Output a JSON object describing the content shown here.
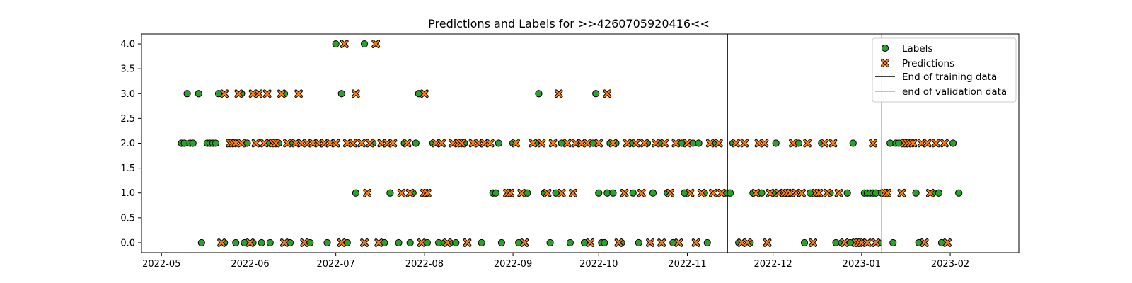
{
  "chart_data": {
    "type": "scatter",
    "title": "Predictions and Labels for >>4260705920416<<",
    "xlabel": "",
    "ylabel": "",
    "x_range": [
      "2022-04-24",
      "2023-02-25"
    ],
    "ylim": [
      -0.2,
      4.2
    ],
    "grid": false,
    "legend_placement": "top-right",
    "x_ticks": [
      "2022-05-01",
      "2022-06-01",
      "2022-07-01",
      "2022-08-01",
      "2022-09-01",
      "2022-10-01",
      "2022-11-01",
      "2022-12-01",
      "2023-01-01",
      "2023-02-01"
    ],
    "x_tick_labels": [
      "2022-05",
      "2022-06",
      "2022-07",
      "2022-08",
      "2022-09",
      "2022-10",
      "2022-11",
      "2022-12",
      "2023-01",
      "2023-02"
    ],
    "y_ticks": [
      0.0,
      0.5,
      1.0,
      1.5,
      2.0,
      2.5,
      3.0,
      3.5,
      4.0
    ],
    "y_tick_labels": [
      "0.0",
      "0.5",
      "1.0",
      "1.5",
      "2.0",
      "2.5",
      "3.0",
      "3.5",
      "4.0"
    ],
    "series": [
      {
        "name": "Labels",
        "marker": "circle",
        "color": "#2ca02c",
        "points": [
          [
            "2022-05-08",
            2
          ],
          [
            "2022-05-09",
            2
          ],
          [
            "2022-05-10",
            3
          ],
          [
            "2022-05-11",
            2
          ],
          [
            "2022-05-12",
            2
          ],
          [
            "2022-05-14",
            3
          ],
          [
            "2022-05-15",
            0
          ],
          [
            "2022-05-17",
            2
          ],
          [
            "2022-05-18",
            2
          ],
          [
            "2022-05-19",
            2
          ],
          [
            "2022-05-20",
            2
          ],
          [
            "2022-05-21",
            3
          ],
          [
            "2022-05-23",
            0
          ],
          [
            "2022-05-27",
            0
          ],
          [
            "2022-05-29",
            3
          ],
          [
            "2022-05-30",
            0
          ],
          [
            "2022-05-31",
            2
          ],
          [
            "2022-06-02",
            0
          ],
          [
            "2022-06-03",
            3
          ],
          [
            "2022-06-05",
            0
          ],
          [
            "2022-06-07",
            2
          ],
          [
            "2022-06-08",
            0
          ],
          [
            "2022-06-11",
            2
          ],
          [
            "2022-06-13",
            3
          ],
          [
            "2022-06-15",
            0
          ],
          [
            "2022-06-16",
            2
          ],
          [
            "2022-06-22",
            0
          ],
          [
            "2022-06-28",
            0
          ],
          [
            "2022-07-01",
            4
          ],
          [
            "2022-07-03",
            3
          ],
          [
            "2022-07-05",
            0
          ],
          [
            "2022-07-08",
            1
          ],
          [
            "2022-07-11",
            4
          ],
          [
            "2022-07-14",
            2
          ],
          [
            "2022-07-18",
            0
          ],
          [
            "2022-07-20",
            1
          ],
          [
            "2022-07-23",
            0
          ],
          [
            "2022-07-25",
            2
          ],
          [
            "2022-07-27",
            0
          ],
          [
            "2022-07-28",
            1
          ],
          [
            "2022-07-29",
            2
          ],
          [
            "2022-07-30",
            3
          ],
          [
            "2022-08-02",
            0
          ],
          [
            "2022-08-04",
            2
          ],
          [
            "2022-08-06",
            0
          ],
          [
            "2022-08-08",
            0
          ],
          [
            "2022-08-10",
            0
          ],
          [
            "2022-08-12",
            0
          ],
          [
            "2022-08-15",
            2
          ],
          [
            "2022-08-21",
            0
          ],
          [
            "2022-08-25",
            1
          ],
          [
            "2022-08-26",
            1
          ],
          [
            "2022-08-27",
            2
          ],
          [
            "2022-08-28",
            0
          ],
          [
            "2022-09-01",
            2
          ],
          [
            "2022-09-03",
            0
          ],
          [
            "2022-09-06",
            1
          ],
          [
            "2022-09-09",
            2
          ],
          [
            "2022-09-10",
            3
          ],
          [
            "2022-09-12",
            1
          ],
          [
            "2022-09-14",
            0
          ],
          [
            "2022-09-16",
            1
          ],
          [
            "2022-09-18",
            2
          ],
          [
            "2022-09-21",
            0
          ],
          [
            "2022-09-24",
            2
          ],
          [
            "2022-09-26",
            0
          ],
          [
            "2022-09-29",
            2
          ],
          [
            "2022-09-30",
            3
          ],
          [
            "2022-10-01",
            1
          ],
          [
            "2022-10-02",
            0
          ],
          [
            "2022-10-03",
            0
          ],
          [
            "2022-10-04",
            1
          ],
          [
            "2022-10-05",
            2
          ],
          [
            "2022-10-06",
            1
          ],
          [
            "2022-10-07",
            2
          ],
          [
            "2022-10-09",
            0
          ],
          [
            "2022-10-12",
            2
          ],
          [
            "2022-10-13",
            1
          ],
          [
            "2022-10-15",
            0
          ],
          [
            "2022-10-18",
            2
          ],
          [
            "2022-10-20",
            1
          ],
          [
            "2022-10-22",
            2
          ],
          [
            "2022-10-25",
            1
          ],
          [
            "2022-10-27",
            0
          ],
          [
            "2022-10-30",
            2
          ],
          [
            "2022-10-31",
            1
          ],
          [
            "2022-11-03",
            2
          ],
          [
            "2022-11-05",
            2
          ],
          [
            "2022-11-07",
            1
          ],
          [
            "2022-11-08",
            0
          ],
          [
            "2022-11-11",
            2
          ],
          [
            "2022-11-14",
            1
          ],
          [
            "2022-11-15",
            1
          ],
          [
            "2022-11-16",
            1
          ],
          [
            "2022-11-17",
            2
          ],
          [
            "2022-11-19",
            0
          ],
          [
            "2022-11-23",
            0
          ],
          [
            "2022-11-24",
            1
          ],
          [
            "2022-11-27",
            1
          ],
          [
            "2022-12-01",
            1
          ],
          [
            "2022-12-02",
            2
          ],
          [
            "2022-12-04",
            1
          ],
          [
            "2022-12-10",
            2
          ],
          [
            "2022-12-12",
            0
          ],
          [
            "2022-12-14",
            1
          ],
          [
            "2022-12-18",
            2
          ],
          [
            "2022-12-21",
            1
          ],
          [
            "2022-12-23",
            0
          ],
          [
            "2022-12-25",
            0
          ],
          [
            "2022-12-27",
            1
          ],
          [
            "2022-12-28",
            0
          ],
          [
            "2022-12-29",
            2
          ],
          [
            "2023-01-02",
            1
          ],
          [
            "2023-01-03",
            1
          ],
          [
            "2023-01-04",
            1
          ],
          [
            "2023-01-05",
            1
          ],
          [
            "2023-01-06",
            1
          ],
          [
            "2023-01-07",
            0
          ],
          [
            "2023-01-08",
            1
          ],
          [
            "2023-01-11",
            2
          ],
          [
            "2023-01-12",
            0
          ],
          [
            "2023-01-13",
            2
          ],
          [
            "2023-01-14",
            2
          ],
          [
            "2023-01-20",
            1
          ],
          [
            "2023-01-21",
            0
          ],
          [
            "2023-01-26",
            1
          ],
          [
            "2023-01-28",
            1
          ],
          [
            "2023-01-29",
            0
          ],
          [
            "2023-02-02",
            2
          ],
          [
            "2023-02-04",
            1
          ]
        ]
      },
      {
        "name": "Predictions",
        "marker": "x",
        "color": "#ff7f0e",
        "points": [
          [
            "2022-05-22",
            0
          ],
          [
            "2022-05-23",
            3
          ],
          [
            "2022-05-25",
            2
          ],
          [
            "2022-05-26",
            2
          ],
          [
            "2022-05-27",
            2
          ],
          [
            "2022-05-28",
            3
          ],
          [
            "2022-05-29",
            2
          ],
          [
            "2022-06-01",
            0
          ],
          [
            "2022-06-02",
            3
          ],
          [
            "2022-06-03",
            2
          ],
          [
            "2022-06-04",
            3
          ],
          [
            "2022-06-06",
            2
          ],
          [
            "2022-06-07",
            3
          ],
          [
            "2022-06-09",
            2
          ],
          [
            "2022-06-10",
            2
          ],
          [
            "2022-06-12",
            3
          ],
          [
            "2022-06-13",
            0
          ],
          [
            "2022-06-14",
            2
          ],
          [
            "2022-06-17",
            2
          ],
          [
            "2022-06-18",
            3
          ],
          [
            "2022-06-19",
            2
          ],
          [
            "2022-06-20",
            0
          ],
          [
            "2022-06-21",
            2
          ],
          [
            "2022-06-23",
            2
          ],
          [
            "2022-06-25",
            2
          ],
          [
            "2022-06-27",
            2
          ],
          [
            "2022-06-29",
            2
          ],
          [
            "2022-07-01",
            2
          ],
          [
            "2022-07-03",
            0
          ],
          [
            "2022-07-04",
            4
          ],
          [
            "2022-07-05",
            2
          ],
          [
            "2022-07-07",
            2
          ],
          [
            "2022-07-08",
            3
          ],
          [
            "2022-07-10",
            2
          ],
          [
            "2022-07-11",
            0
          ],
          [
            "2022-07-12",
            1
          ],
          [
            "2022-07-13",
            2
          ],
          [
            "2022-07-15",
            4
          ],
          [
            "2022-07-16",
            0
          ],
          [
            "2022-07-17",
            2
          ],
          [
            "2022-07-19",
            2
          ],
          [
            "2022-07-21",
            2
          ],
          [
            "2022-07-24",
            1
          ],
          [
            "2022-07-26",
            2
          ],
          [
            "2022-07-27",
            1
          ],
          [
            "2022-07-31",
            0
          ],
          [
            "2022-08-01",
            3
          ],
          [
            "2022-08-01",
            1
          ],
          [
            "2022-08-02",
            1
          ],
          [
            "2022-08-05",
            2
          ],
          [
            "2022-08-07",
            2
          ],
          [
            "2022-08-09",
            0
          ],
          [
            "2022-08-11",
            2
          ],
          [
            "2022-08-13",
            2
          ],
          [
            "2022-08-14",
            2
          ],
          [
            "2022-08-16",
            0
          ],
          [
            "2022-08-18",
            2
          ],
          [
            "2022-08-20",
            2
          ],
          [
            "2022-08-22",
            2
          ],
          [
            "2022-08-24",
            2
          ],
          [
            "2022-08-30",
            1
          ],
          [
            "2022-08-31",
            1
          ],
          [
            "2022-09-02",
            2
          ],
          [
            "2022-09-04",
            1
          ],
          [
            "2022-09-05",
            0
          ],
          [
            "2022-09-08",
            2
          ],
          [
            "2022-09-11",
            2
          ],
          [
            "2022-09-13",
            1
          ],
          [
            "2022-09-15",
            2
          ],
          [
            "2022-09-17",
            3
          ],
          [
            "2022-09-18",
            1
          ],
          [
            "2022-09-20",
            2
          ],
          [
            "2022-09-22",
            1
          ],
          [
            "2022-09-23",
            2
          ],
          [
            "2022-09-25",
            2
          ],
          [
            "2022-09-27",
            2
          ],
          [
            "2022-09-28",
            0
          ],
          [
            "2022-10-01",
            2
          ],
          [
            "2022-10-04",
            3
          ],
          [
            "2022-10-06",
            2
          ],
          [
            "2022-10-08",
            0
          ],
          [
            "2022-10-10",
            1
          ],
          [
            "2022-10-11",
            2
          ],
          [
            "2022-10-14",
            2
          ],
          [
            "2022-10-16",
            1
          ],
          [
            "2022-10-17",
            2
          ],
          [
            "2022-10-19",
            0
          ],
          [
            "2022-10-21",
            2
          ],
          [
            "2022-10-23",
            0
          ],
          [
            "2022-10-24",
            2
          ],
          [
            "2022-10-26",
            1
          ],
          [
            "2022-10-28",
            2
          ],
          [
            "2022-10-29",
            0
          ],
          [
            "2022-11-01",
            2
          ],
          [
            "2022-11-02",
            1
          ],
          [
            "2022-11-04",
            0
          ],
          [
            "2022-11-06",
            1
          ],
          [
            "2022-11-09",
            2
          ],
          [
            "2022-11-10",
            1
          ],
          [
            "2022-11-12",
            2
          ],
          [
            "2022-11-13",
            1
          ],
          [
            "2022-11-18",
            2
          ],
          [
            "2022-11-20",
            0
          ],
          [
            "2022-11-21",
            2
          ],
          [
            "2022-11-22",
            0
          ],
          [
            "2022-11-25",
            1
          ],
          [
            "2022-11-26",
            2
          ],
          [
            "2022-11-28",
            2
          ],
          [
            "2022-11-29",
            0
          ],
          [
            "2022-11-30",
            1
          ],
          [
            "2022-12-03",
            1
          ],
          [
            "2022-12-05",
            1
          ],
          [
            "2022-12-06",
            1
          ],
          [
            "2022-12-07",
            1
          ],
          [
            "2022-12-08",
            2
          ],
          [
            "2022-12-09",
            1
          ],
          [
            "2022-12-11",
            1
          ],
          [
            "2022-12-13",
            2
          ],
          [
            "2022-12-15",
            0
          ],
          [
            "2022-12-16",
            1
          ],
          [
            "2022-12-17",
            1
          ],
          [
            "2022-12-19",
            2
          ],
          [
            "2022-12-20",
            1
          ],
          [
            "2022-12-22",
            2
          ],
          [
            "2022-12-24",
            1
          ],
          [
            "2022-12-26",
            0
          ],
          [
            "2022-12-30",
            0
          ],
          [
            "2022-12-31",
            0
          ],
          [
            "2023-01-01",
            0
          ],
          [
            "2023-01-03",
            0
          ],
          [
            "2023-01-05",
            2
          ],
          [
            "2023-01-06",
            0
          ],
          [
            "2023-01-09",
            1
          ],
          [
            "2023-01-10",
            1
          ],
          [
            "2023-01-15",
            1
          ],
          [
            "2023-01-16",
            2
          ],
          [
            "2023-01-17",
            2
          ],
          [
            "2023-01-18",
            2
          ],
          [
            "2023-01-19",
            2
          ],
          [
            "2023-01-22",
            2
          ],
          [
            "2023-01-23",
            0
          ],
          [
            "2023-01-24",
            2
          ],
          [
            "2023-01-25",
            1
          ],
          [
            "2023-01-27",
            2
          ],
          [
            "2023-01-30",
            2
          ],
          [
            "2023-01-31",
            0
          ]
        ]
      }
    ],
    "vlines": [
      {
        "name": "End of training data",
        "x": "2022-11-15",
        "color": "#000000"
      },
      {
        "name": "end of validation data",
        "x": "2023-01-08",
        "color": "#ffa500"
      }
    ]
  }
}
